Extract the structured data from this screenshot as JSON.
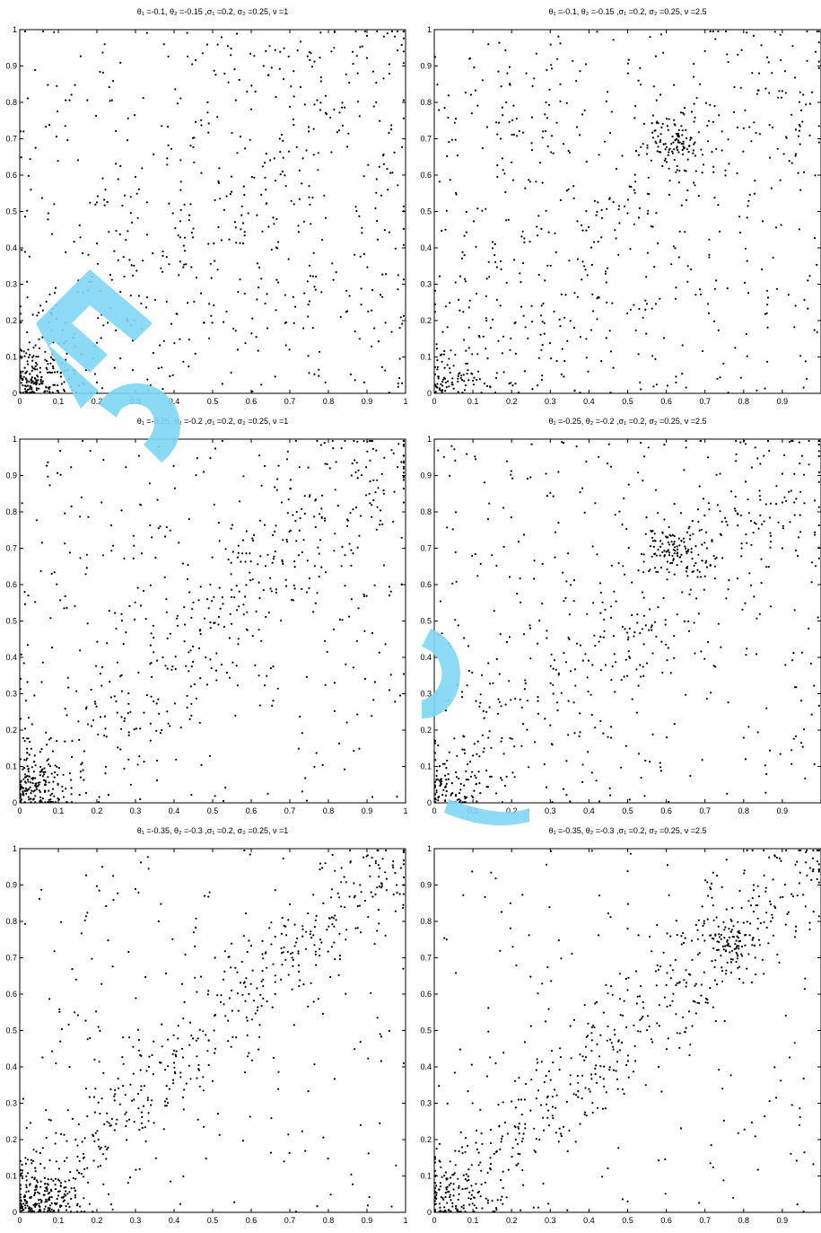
{
  "chart_data": [
    {
      "type": "scatter",
      "title": "θ₁ =-0.1, θ₂ =-0.15 ,σ₁ =0.2, σ₂ =0.25, ν =1",
      "theta1": -0.1,
      "theta2": -0.15,
      "sigma1": 0.2,
      "sigma2": 0.25,
      "nu": 1,
      "xlim": [
        0,
        1
      ],
      "ylim": [
        0,
        1
      ],
      "xticks": [
        "0",
        "0.1",
        "0.2",
        "0.3",
        "0.4",
        "0.5",
        "0.6",
        "0.7",
        "0.8",
        "0.9",
        "1"
      ],
      "yticks": [
        "0",
        "0.1",
        "0.2",
        "0.3",
        "0.4",
        "0.5",
        "0.6",
        "0.7",
        "0.8",
        "0.9",
        "1"
      ],
      "grid": false,
      "n_points": 800,
      "seed": 11
    },
    {
      "type": "scatter",
      "title": "θ₁ =-0.1, θ₂ =-0.15 ,σ₁ =0.2, σ₂ =0.25, ν =2.5",
      "theta1": -0.1,
      "theta2": -0.15,
      "sigma1": 0.2,
      "sigma2": 0.25,
      "nu": 2.5,
      "xlim": [
        0,
        1
      ],
      "ylim": [
        0,
        1
      ],
      "xticks": [
        "0",
        "0.1",
        "0.2",
        "0.3",
        "0.4",
        "0.5",
        "0.6",
        "0.7",
        "0.8",
        "0.9"
      ],
      "yticks": [
        "0",
        "0.1",
        "0.2",
        "0.3",
        "0.4",
        "0.5",
        "0.6",
        "0.7",
        "0.8",
        "0.9",
        "1"
      ],
      "grid": false,
      "n_points": 800,
      "seed": 12
    },
    {
      "type": "scatter",
      "title": "θ₁ =-0.25, θ₂ =-0.2 ,σ₁ =0.2, σ₂ =0.25, ν =1",
      "theta1": -0.25,
      "theta2": -0.2,
      "sigma1": 0.2,
      "sigma2": 0.25,
      "nu": 1,
      "xlim": [
        0,
        1
      ],
      "ylim": [
        0,
        1
      ],
      "xticks": [
        "0",
        "0.1",
        "0.2",
        "0.3",
        "0.4",
        "0.5",
        "0.6",
        "0.7",
        "0.8",
        "0.9",
        "1"
      ],
      "yticks": [
        "0",
        "0.1",
        "0.2",
        "0.3",
        "0.4",
        "0.5",
        "0.6",
        "0.7",
        "0.8",
        "0.9",
        "1"
      ],
      "grid": false,
      "n_points": 800,
      "seed": 21
    },
    {
      "type": "scatter",
      "title": "θ₁ =-0.25, θ₂ =-0.2 ,σ₁ =0.2, σ₂ =0.25, ν =2.5",
      "theta1": -0.25,
      "theta2": -0.2,
      "sigma1": 0.2,
      "sigma2": 0.25,
      "nu": 2.5,
      "xlim": [
        0,
        1
      ],
      "ylim": [
        0,
        1
      ],
      "xticks": [
        "0",
        "0.1",
        "0.2",
        "0.3",
        "0.4",
        "0.5",
        "0.6",
        "0.7",
        "0.8",
        "0.9"
      ],
      "yticks": [
        "0",
        "0.1",
        "0.2",
        "0.3",
        "0.4",
        "0.5",
        "0.6",
        "0.7",
        "0.8",
        "0.9",
        "1"
      ],
      "grid": false,
      "n_points": 800,
      "seed": 22
    },
    {
      "type": "scatter",
      "title": "θ₁ =-0.35, θ₂ =-0.3 ,σ₁ =0.2, σ₂ =0.25, ν =1",
      "theta1": -0.35,
      "theta2": -0.3,
      "sigma1": 0.2,
      "sigma2": 0.25,
      "nu": 1,
      "xlim": [
        0,
        1
      ],
      "ylim": [
        0,
        1
      ],
      "xticks": [
        "0",
        "0.1",
        "0.2",
        "0.3",
        "0.4",
        "0.5",
        "0.6",
        "0.7",
        "0.8",
        "0.9",
        "1"
      ],
      "yticks": [
        "0",
        "0.1",
        "0.2",
        "0.3",
        "0.4",
        "0.5",
        "0.6",
        "0.7",
        "0.8",
        "0.9",
        "1"
      ],
      "grid": false,
      "n_points": 800,
      "seed": 31
    },
    {
      "type": "scatter",
      "title": "θ₁ =-0.35, θ₂ =-0.3 ,σ₁ =0.2, σ₂ =0.25, ν =2.5",
      "theta1": -0.35,
      "theta2": -0.3,
      "sigma1": 0.2,
      "sigma2": 0.25,
      "nu": 2.5,
      "xlim": [
        0,
        1
      ],
      "ylim": [
        0,
        1
      ],
      "xticks": [
        "0",
        "0.1",
        "0.2",
        "0.3",
        "0.4",
        "0.5",
        "0.6",
        "0.7",
        "0.8",
        "0.9"
      ],
      "yticks": [
        "0",
        "0.1",
        "0.2",
        "0.3",
        "0.4",
        "0.5",
        "0.6",
        "0.7",
        "0.8",
        "0.9",
        "1"
      ],
      "grid": false,
      "n_points": 800,
      "seed": 32
    }
  ],
  "style": {
    "point_color": "#000000",
    "axis_color": "#000000",
    "watermark_color": "#7fd6f5"
  }
}
